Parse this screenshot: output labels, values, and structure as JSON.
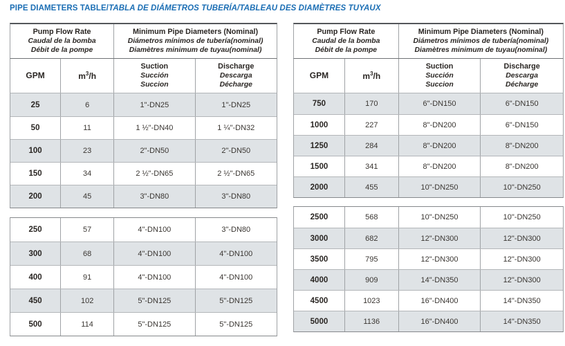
{
  "title": {
    "en": "PIPE DIAMETERS TABLE/",
    "intl": "TABLA DE DIÁMETROS TUBERÍA/TABLEAU DES DIAMÈTRES TUYAUX"
  },
  "header": {
    "flow": [
      "Pump Flow Rate",
      "Caudal de la bomba",
      "Débit de la pompe"
    ],
    "diam": [
      "Minimum Pipe Diameters (Nominal)",
      "Diámetros mínimos de tubería(nominal)",
      "Diamètres minimum de tuyau(nominal)"
    ],
    "gpm": "GPM",
    "m3h": [
      "m",
      "3",
      "/h"
    ],
    "suction": [
      "Suction",
      "Succión",
      "Succion"
    ],
    "discharge": [
      "Discharge",
      "Descarga",
      "Décharge"
    ]
  },
  "tables": [
    {
      "sections": [
        [
          [
            "25",
            "6",
            "1\"-DN25",
            "1\"-DN25"
          ],
          [
            "50",
            "11",
            "1 ½\"-DN40",
            "1 ¼\"-DN32"
          ],
          [
            "100",
            "23",
            "2\"-DN50",
            "2\"-DN50"
          ],
          [
            "150",
            "34",
            "2 ½\"-DN65",
            "2 ½\"-DN65"
          ],
          [
            "200",
            "45",
            "3\"-DN80",
            "3\"-DN80"
          ]
        ],
        [
          [
            "250",
            "57",
            "4\"-DN100",
            "3\"-DN80"
          ],
          [
            "300",
            "68",
            "4\"-DN100",
            "4\"-DN100"
          ],
          [
            "400",
            "91",
            "4\"-DN100",
            "4\"-DN100"
          ],
          [
            "450",
            "102",
            "5\"-DN125",
            "5\"-DN125"
          ],
          [
            "500",
            "114",
            "5\"-DN125",
            "5\"-DN125"
          ]
        ]
      ]
    },
    {
      "sections": [
        [
          [
            "750",
            "170",
            "6\"-DN150",
            "6\"-DN150"
          ],
          [
            "1000",
            "227",
            "8\"-DN200",
            "6\"-DN150"
          ],
          [
            "1250",
            "284",
            "8\"-DN200",
            "8\"-DN200"
          ],
          [
            "1500",
            "341",
            "8\"-DN200",
            "8\"-DN200"
          ],
          [
            "2000",
            "455",
            "10\"-DN250",
            "10\"-DN250"
          ]
        ],
        [
          [
            "2500",
            "568",
            "10\"-DN250",
            "10\"-DN250"
          ],
          [
            "3000",
            "682",
            "12\"-DN300",
            "12\"-DN300"
          ],
          [
            "3500",
            "795",
            "12\"-DN300",
            "12\"-DN300"
          ],
          [
            "4000",
            "909",
            "14\"-DN350",
            "12\"-DN300"
          ],
          [
            "4500",
            "1023",
            "16\"-DN400",
            "14\"-DN350"
          ],
          [
            "5000",
            "1136",
            "16\"-DN400",
            "14\"-DN350"
          ]
        ]
      ]
    }
  ],
  "colors": {
    "title_blue": "#1b6eb4",
    "row_shade": "#dfe3e6",
    "border_dark": "#54565a",
    "text": "#3a3632"
  }
}
